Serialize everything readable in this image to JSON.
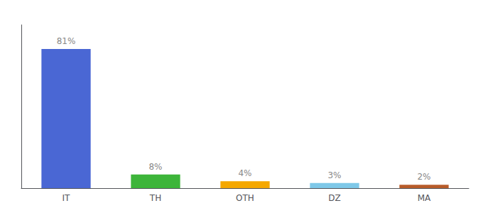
{
  "chart_data": {
    "type": "bar",
    "categories": [
      "IT",
      "TH",
      "OTH",
      "DZ",
      "MA"
    ],
    "values": [
      81,
      8,
      4,
      3,
      2
    ],
    "value_labels": [
      "81%",
      "8%",
      "4%",
      "3%",
      "2%"
    ],
    "colors": [
      "#4a67d4",
      "#3db53a",
      "#f5a800",
      "#7ec8e8",
      "#b85c2a"
    ],
    "ylim": [
      0,
      95
    ],
    "grid": false,
    "data_labels": true,
    "tick_labels": "x"
  }
}
